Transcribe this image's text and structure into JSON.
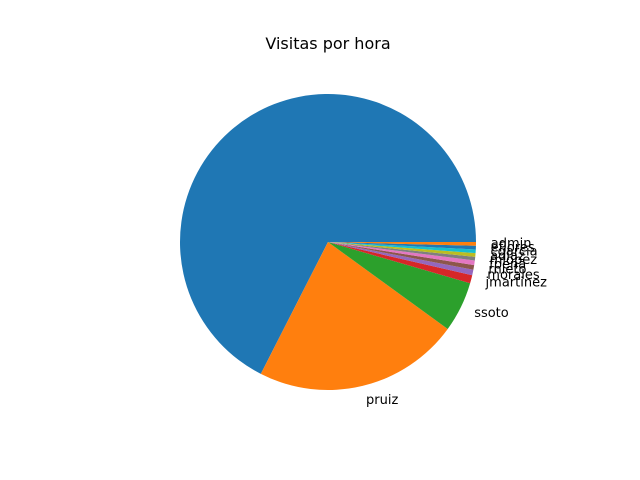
{
  "chart_data": {
    "type": "pie",
    "title": "Visitas por hora",
    "categories": [
      "",
      "pruiz",
      "ssoto",
      "jmartinez",
      "morales",
      "rnieto",
      "fpena",
      "mlopez",
      "adiaz",
      "cgarcia",
      "eflores",
      "admin"
    ],
    "values": [
      67.5,
      22.5,
      5.5,
      0.9,
      0.6,
      0.5,
      0.5,
      0.4,
      0.4,
      0.4,
      0.4,
      0.4
    ],
    "colors": [
      "#1f77b4",
      "#ff7f0e",
      "#2ca02c",
      "#d62728",
      "#9467bd",
      "#8c564b",
      "#e377c2",
      "#7f7f7f",
      "#bcbd22",
      "#17becf",
      "#1f77b4",
      "#ff7f0e"
    ],
    "start_angle_deg": 0,
    "direction": "counterclockwise",
    "legend": "none"
  }
}
